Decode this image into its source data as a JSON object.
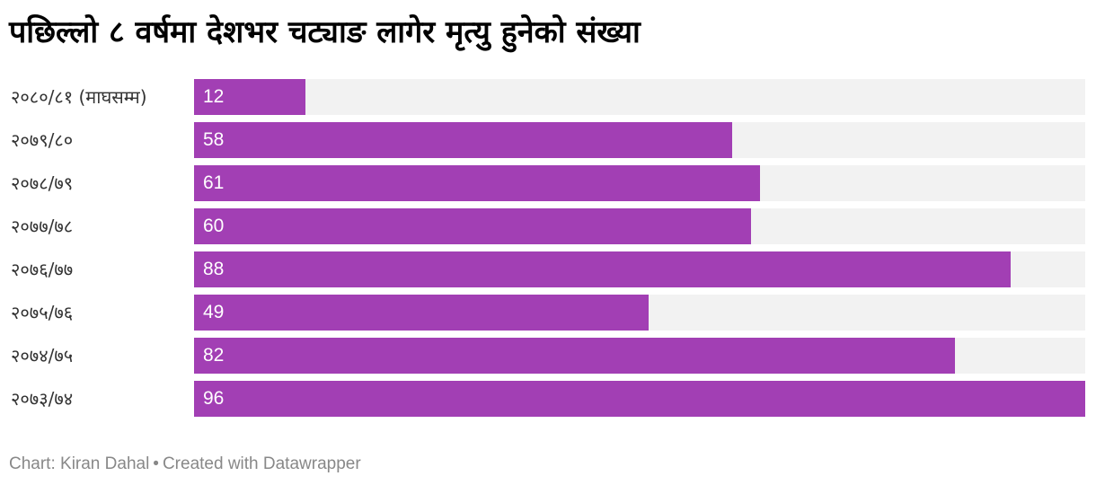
{
  "title": "पछिल्लो ८ वर्षमा देशभर चट्याङ लागेर मृत्यु हुनेको संख्या",
  "footer": {
    "credit": "Chart: Kiran Dahal",
    "separator": "•",
    "made_with": "Created with Datawrapper"
  },
  "colors": {
    "bar": "#a23fb4",
    "track": "#f2f2f2",
    "value_text": "#ffffff",
    "label_text": "#333333",
    "footer_text": "#888888"
  },
  "chart_data": {
    "type": "bar",
    "orientation": "horizontal",
    "title": "पछिल्लो ८ वर्षमा देशभर चट्याङ लागेर मृत्यु हुनेको संख्या",
    "xlabel": "",
    "ylabel": "",
    "xlim": [
      0,
      96
    ],
    "grid": false,
    "legend": "none",
    "categories": [
      "२०८०/८१ (माघसम्म)",
      "२०७९/८०",
      "२०७८/७९",
      "२०७७/७८",
      "२०७६/७७",
      "२०७५/७६",
      "२०७४/७५",
      "२०७३/७४"
    ],
    "values": [
      12,
      58,
      61,
      60,
      88,
      49,
      82,
      96
    ]
  }
}
